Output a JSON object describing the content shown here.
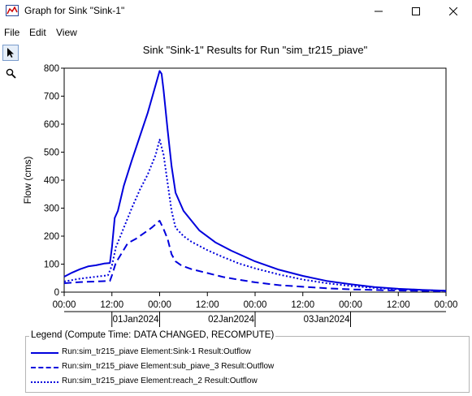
{
  "window": {
    "title": "Graph for Sink \"Sink-1\"",
    "controls": {
      "minimize": "—",
      "maximize": "☐",
      "close": "✕"
    }
  },
  "menu": {
    "items": [
      "File",
      "Edit",
      "View"
    ]
  },
  "tools": [
    {
      "name": "pointer-icon",
      "glyph": "arrow"
    },
    {
      "name": "zoom-icon",
      "glyph": "magnifier"
    }
  ],
  "chart_data": {
    "type": "line",
    "title": "Sink \"Sink-1\" Results for Run \"sim_tr215_piave\"",
    "ylabel": "Flow (cms)",
    "xlabel": "",
    "ylim": [
      0,
      800
    ],
    "yticks": [
      0,
      100,
      200,
      300,
      400,
      500,
      600,
      700,
      800
    ],
    "xlim": [
      0,
      96
    ],
    "x_unit": "hours from 2024-01-01 00:00",
    "xticks": [
      {
        "x": 0,
        "label": "00:00"
      },
      {
        "x": 12,
        "label": "12:00"
      },
      {
        "x": 24,
        "label": "00:00"
      },
      {
        "x": 36,
        "label": "12:00"
      },
      {
        "x": 48,
        "label": "00:00"
      },
      {
        "x": 60,
        "label": "12:00"
      },
      {
        "x": 72,
        "label": "00:00"
      },
      {
        "x": 84,
        "label": "12:00"
      },
      {
        "x": 96,
        "label": "00:00"
      }
    ],
    "date_labels": [
      {
        "x": 18,
        "label": "01Jan2024"
      },
      {
        "x": 42,
        "label": "02Jan2024"
      },
      {
        "x": 66,
        "label": "03Jan2024"
      }
    ],
    "date_separators": [
      12,
      24,
      48,
      72
    ],
    "grid": false,
    "legend_title": "Legend (Compute Time: DATA CHANGED, RECOMPUTE)",
    "legend_position": "bottom",
    "series": [
      {
        "name": "Run:sim_tr215_piave Element:Sink-1 Result:Outflow",
        "style": "solid",
        "color": "#0000dd",
        "points": [
          [
            0,
            55
          ],
          [
            2,
            70
          ],
          [
            4,
            82
          ],
          [
            6,
            92
          ],
          [
            8,
            96
          ],
          [
            10,
            102
          ],
          [
            11.5,
            104
          ],
          [
            12,
            160
          ],
          [
            12.7,
            265
          ],
          [
            13.5,
            290
          ],
          [
            15,
            380
          ],
          [
            17,
            470
          ],
          [
            19,
            555
          ],
          [
            21,
            640
          ],
          [
            23,
            740
          ],
          [
            24,
            790
          ],
          [
            24.5,
            780
          ],
          [
            25,
            720
          ],
          [
            26,
            580
          ],
          [
            27,
            450
          ],
          [
            28,
            355
          ],
          [
            30,
            290
          ],
          [
            32,
            255
          ],
          [
            34,
            220
          ],
          [
            38,
            178
          ],
          [
            42,
            148
          ],
          [
            48,
            110
          ],
          [
            54,
            80
          ],
          [
            60,
            58
          ],
          [
            66,
            40
          ],
          [
            72,
            28
          ],
          [
            78,
            18
          ],
          [
            84,
            12
          ],
          [
            90,
            8
          ],
          [
            96,
            5
          ]
        ]
      },
      {
        "name": "Run:sim_tr215_piave Element:sub_piave_3 Result:Outflow",
        "style": "dashed",
        "color": "#0000dd",
        "points": [
          [
            0,
            32
          ],
          [
            4,
            36
          ],
          [
            8,
            38
          ],
          [
            11.5,
            40
          ],
          [
            12,
            60
          ],
          [
            13,
            105
          ],
          [
            14.5,
            140
          ],
          [
            16,
            175
          ],
          [
            18,
            190
          ],
          [
            20,
            210
          ],
          [
            22,
            230
          ],
          [
            24,
            255
          ],
          [
            25,
            225
          ],
          [
            26,
            190
          ],
          [
            27,
            135
          ],
          [
            28,
            110
          ],
          [
            29.5,
            95
          ],
          [
            32,
            82
          ],
          [
            36,
            68
          ],
          [
            40,
            54
          ],
          [
            44,
            44
          ],
          [
            48,
            35
          ],
          [
            54,
            25
          ],
          [
            60,
            19
          ],
          [
            66,
            14
          ],
          [
            72,
            10
          ],
          [
            80,
            7
          ],
          [
            88,
            5
          ],
          [
            96,
            3
          ]
        ]
      },
      {
        "name": "Run:sim_tr215_piave Element:reach_2 Result:Outflow",
        "style": "dotted",
        "color": "#0000dd",
        "points": [
          [
            0,
            38
          ],
          [
            4,
            48
          ],
          [
            8,
            55
          ],
          [
            11,
            60
          ],
          [
            12,
            95
          ],
          [
            13,
            160
          ],
          [
            15,
            230
          ],
          [
            17,
            300
          ],
          [
            19,
            365
          ],
          [
            21,
            420
          ],
          [
            23,
            490
          ],
          [
            24,
            545
          ],
          [
            25,
            490
          ],
          [
            26,
            390
          ],
          [
            27,
            290
          ],
          [
            28,
            230
          ],
          [
            30,
            200
          ],
          [
            32,
            180
          ],
          [
            36,
            150
          ],
          [
            40,
            125
          ],
          [
            44,
            102
          ],
          [
            48,
            85
          ],
          [
            54,
            63
          ],
          [
            60,
            45
          ],
          [
            66,
            32
          ],
          [
            72,
            22
          ],
          [
            78,
            15
          ],
          [
            84,
            10
          ],
          [
            90,
            7
          ],
          [
            96,
            5
          ]
        ]
      }
    ]
  }
}
